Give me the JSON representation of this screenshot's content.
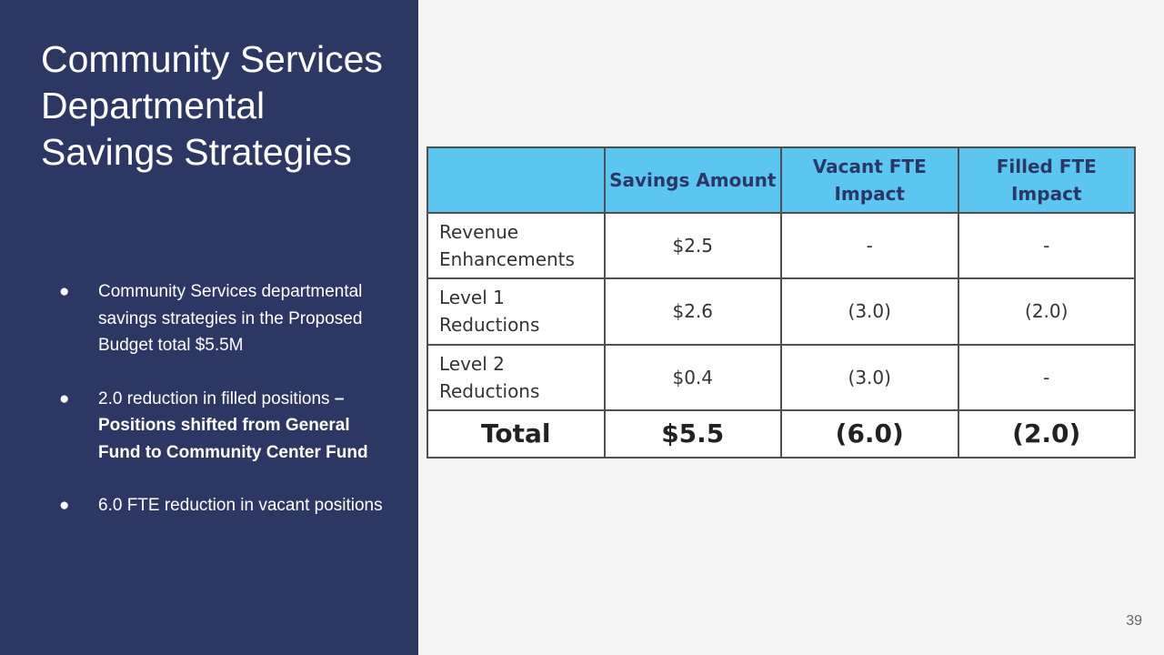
{
  "slide": {
    "title": "Community Services Departmental Savings Strategies",
    "page_number": "39"
  },
  "bullets": [
    {
      "text": "Community Services departmental savings strategies in the Proposed Budget total $5.5M",
      "bold": ""
    },
    {
      "text": "2.0 reduction in filled positions ",
      "bold": "– Positions shifted from General Fund to Community Center Fund"
    },
    {
      "text": "6.0 FTE reduction in vacant positions",
      "bold": ""
    }
  ],
  "table": {
    "headers": [
      "",
      "Savings Amount",
      "Vacant FTE Impact",
      "Filled FTE Impact"
    ],
    "rows": [
      [
        "Revenue Enhancements",
        "$2.5",
        "-",
        "-"
      ],
      [
        "Level 1 Reductions",
        "$2.6",
        "(3.0)",
        "(2.0)"
      ],
      [
        "Level 2 Reductions",
        "$0.4",
        "(3.0)",
        "-"
      ]
    ],
    "total": [
      "Total",
      "$5.5",
      "(6.0)",
      "(2.0)"
    ]
  },
  "colors": {
    "panel_bg": "#2c3863",
    "header_bg": "#5bc7f0",
    "header_text": "#2c3863"
  }
}
